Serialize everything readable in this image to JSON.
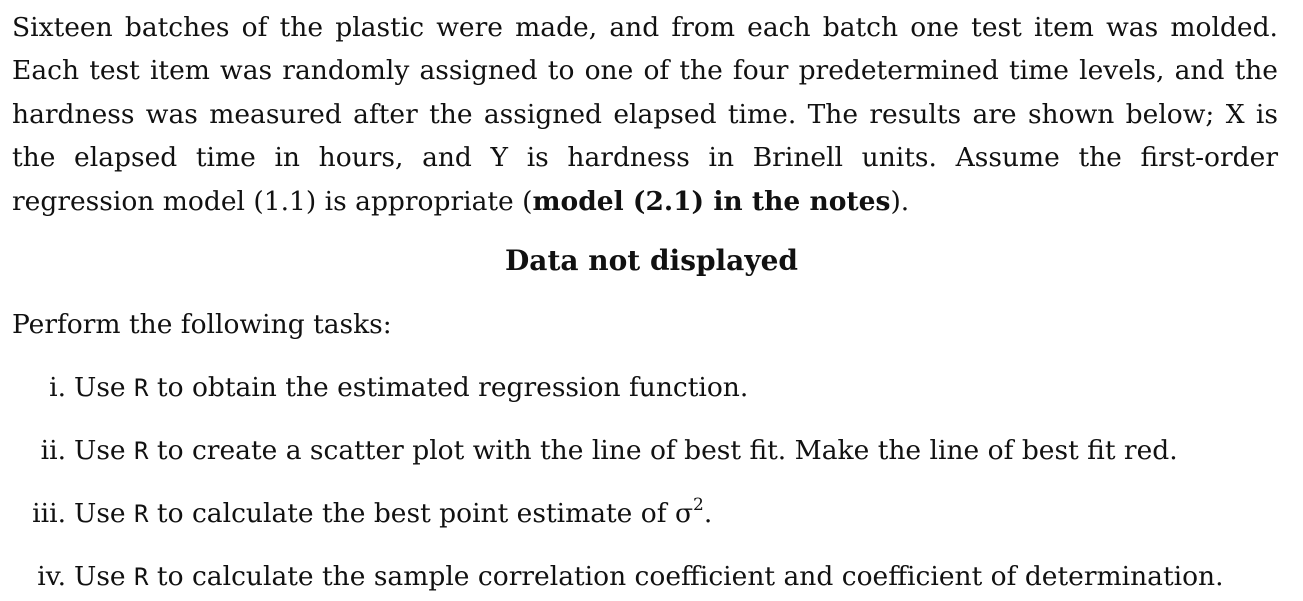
{
  "paragraph": {
    "text_before_bold": "Sixteen batches of the plastic were made, and from each batch one test item was molded. Each test item was randomly assigned to one of the four predetermined time levels, and the hardness was measured after the assigned elapsed time. The results are shown below; X is the elapsed time in hours, and Y is hardness in Brinell units. Assume the first-order regression model (1.1) is appropriate (",
    "bold": "model (2.1) in the notes",
    "text_after_bold": ")."
  },
  "heading": "Data not displayed",
  "intro": "Perform the following tasks:",
  "tasks": [
    {
      "num": "i.",
      "pre": "Use ",
      "code": "R",
      "post": " to obtain the estimated regression function."
    },
    {
      "num": "ii.",
      "pre": "Use ",
      "code": "R",
      "post": " to create a scatter plot with the line of best fit. Make the line of best fit red."
    },
    {
      "num": "iii.",
      "pre": "Use ",
      "code": "R",
      "post": " to calculate the best point estimate of σ",
      "sup": "2",
      "end": "."
    },
    {
      "num": "iv.",
      "pre": "Use ",
      "code": "R",
      "post": " to calculate the sample correlation coefficient and coefficient of determination."
    }
  ]
}
